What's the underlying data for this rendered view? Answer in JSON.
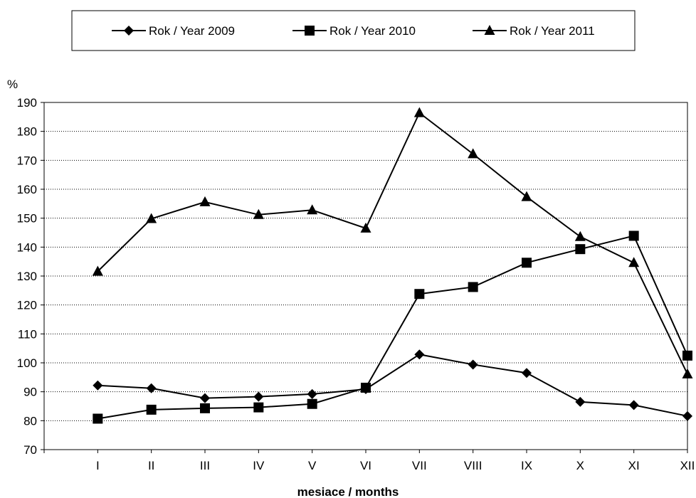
{
  "chart_data": {
    "type": "line",
    "title": "",
    "ylabel": "%",
    "xlabel": "mesiace / months",
    "categories": [
      "I",
      "II",
      "III",
      "IV",
      "V",
      "VI",
      "VII",
      "VIII",
      "IX",
      "X",
      "XI",
      "XII"
    ],
    "ylim": [
      70,
      190
    ],
    "yticks": [
      70,
      80,
      90,
      100,
      110,
      120,
      130,
      140,
      150,
      160,
      170,
      180,
      190
    ],
    "grid": true,
    "legend_position": "top",
    "series": [
      {
        "name": "Rok / Year 2009",
        "marker": "diamond",
        "values": [
          92.2,
          91.2,
          87.8,
          88.3,
          89.2,
          90.9,
          102.9,
          99.4,
          96.5,
          86.5,
          85.4,
          81.6
        ]
      },
      {
        "name": "Rok / Year 2010",
        "marker": "square",
        "values": [
          80.7,
          83.8,
          84.3,
          84.6,
          85.8,
          91.4,
          123.8,
          126.2,
          134.6,
          139.3,
          143.9,
          102.5
        ]
      },
      {
        "name": "Rok / Year 2011",
        "marker": "triangle",
        "values": [
          131.6,
          149.8,
          155.6,
          151.2,
          152.8,
          146.5,
          186.4,
          172.2,
          157.4,
          143.6,
          134.6,
          96.1
        ]
      }
    ]
  }
}
